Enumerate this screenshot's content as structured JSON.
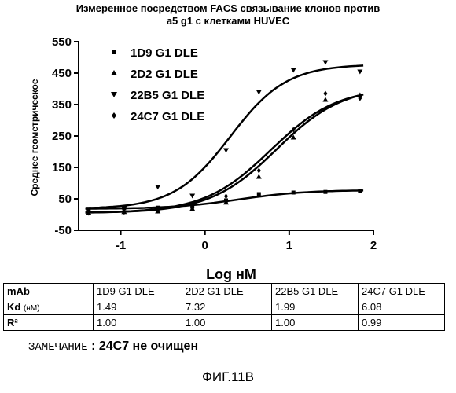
{
  "chart_data": {
    "type": "scatter",
    "title_lines": [
      "Измеренное посредством FACS связывание клонов против",
      "a5 g1 с клетками HUVEC"
    ],
    "xlabel": "Log нМ",
    "ylabel": "Среднее геометрическое",
    "xlim": [
      -1.5,
      2
    ],
    "ylim": [
      -50,
      550
    ],
    "xticks": [
      -1,
      0,
      1,
      2
    ],
    "yticks": [
      -50,
      50,
      150,
      250,
      350,
      450,
      550
    ],
    "legend_position": "top-center",
    "series": [
      {
        "name": "1D9 G1 DLE",
        "marker": "square",
        "x": [
          -1.38,
          -0.96,
          -0.56,
          -0.15,
          0.25,
          0.64,
          1.05,
          1.43,
          1.84
        ],
        "y": [
          18,
          20,
          22,
          28,
          45,
          65,
          70,
          72,
          75
        ],
        "curve": {
          "bottom": 18,
          "top": 78,
          "log_ec50": 0.4,
          "hill": 1.1
        }
      },
      {
        "name": "2D2 G1 DLE",
        "marker": "triangle-up",
        "x": [
          -1.38,
          -0.96,
          -0.56,
          -0.15,
          0.25,
          0.64,
          1.05,
          1.43,
          1.84
        ],
        "y": [
          5,
          8,
          10,
          18,
          38,
          120,
          245,
          365,
          380
        ],
        "curve": {
          "bottom": 5,
          "top": 410,
          "log_ec50": 0.85,
          "hill": 1.1
        }
      },
      {
        "name": "22B5 G1 DLE",
        "marker": "triangle-down",
        "x": [
          -1.38,
          -0.96,
          -0.56,
          -0.15,
          0.25,
          0.64,
          1.05,
          1.43,
          1.84
        ],
        "y": [
          18,
          20,
          88,
          60,
          205,
          390,
          460,
          485,
          455
        ],
        "curve": {
          "bottom": 18,
          "top": 478,
          "log_ec50": 0.3,
          "hill": 1.3
        }
      },
      {
        "name": "24C7 G1 DLE",
        "marker": "diamond",
        "x": [
          -1.38,
          -0.96,
          -0.56,
          -0.15,
          0.25,
          0.64,
          1.05,
          1.43,
          1.84
        ],
        "y": [
          5,
          8,
          12,
          20,
          58,
          140,
          270,
          385,
          370
        ],
        "curve": {
          "bottom": 5,
          "top": 405,
          "log_ec50": 0.78,
          "hill": 1.1
        }
      }
    ]
  },
  "table": {
    "header": [
      "mAb",
      "1D9 G1 DLE",
      "2D2 G1 DLE",
      "22B5 G1 DLE",
      "24C7 G1 DLE"
    ],
    "rows": [
      {
        "label": "Kd",
        "unit": "(нМ)",
        "values": [
          "1.49",
          "7.32",
          "1.99",
          "6.08"
        ]
      },
      {
        "label": "R²",
        "unit": "",
        "values": [
          "1.00",
          "1.00",
          "1.00",
          "0.99"
        ]
      }
    ]
  },
  "note": {
    "label": "ЗАМЕЧАНИЕ",
    "text": ": 24C7 не очищен"
  },
  "figure_label": "ФИГ.11B"
}
